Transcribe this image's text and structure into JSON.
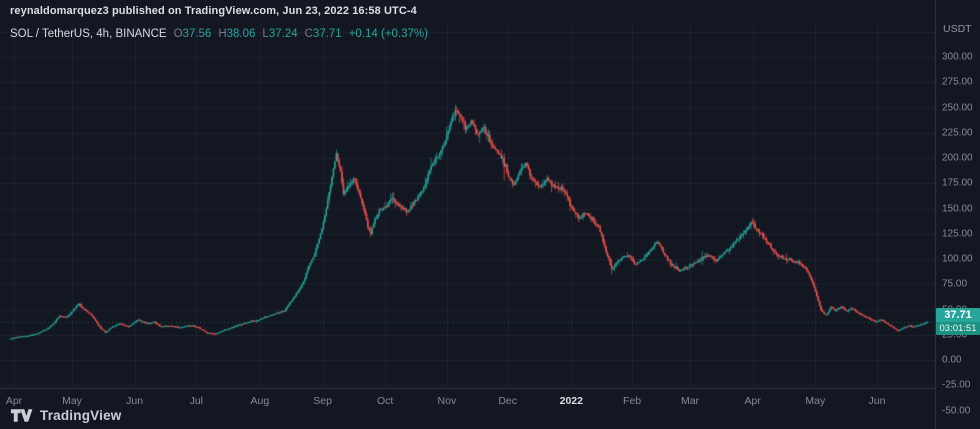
{
  "header": {
    "published_line": "reynaldomarquez3 published on TradingView.com, Jun 23, 2022 16:58 UTC-4"
  },
  "legend": {
    "symbol": "SOL / TetherUS, 4h, BINANCE",
    "ohlc": [
      {
        "label": "O",
        "value": "37.56"
      },
      {
        "label": "H",
        "value": "38.06"
      },
      {
        "label": "L",
        "value": "37.24"
      },
      {
        "label": "C",
        "value": "37.71"
      }
    ],
    "change": "+0.14 (+0.37%)"
  },
  "price_axis": {
    "unit": "USDT",
    "tick_labels": [
      "300.00",
      "275.00",
      "250.00",
      "225.00",
      "200.00",
      "175.00",
      "150.00",
      "125.00",
      "100.00",
      "75.00",
      "50.00",
      "25.00",
      "0.00",
      "-25.00",
      "-50.00"
    ],
    "tick_values": [
      300,
      275,
      250,
      225,
      200,
      175,
      150,
      125,
      100,
      75,
      50,
      25,
      0,
      -25,
      -50
    ],
    "last_price": "37.71",
    "countdown": "03:01:51"
  },
  "time_axis": {
    "labels": [
      {
        "text": "Apr",
        "t": 0.015,
        "highlight": false
      },
      {
        "text": "May",
        "t": 0.077,
        "highlight": false
      },
      {
        "text": "Jun",
        "t": 0.144,
        "highlight": false
      },
      {
        "text": "Jul",
        "t": 0.21,
        "highlight": false
      },
      {
        "text": "Aug",
        "t": 0.278,
        "highlight": false
      },
      {
        "text": "Sep",
        "t": 0.345,
        "highlight": false
      },
      {
        "text": "Oct",
        "t": 0.412,
        "highlight": false
      },
      {
        "text": "Nov",
        "t": 0.478,
        "highlight": false
      },
      {
        "text": "Dec",
        "t": 0.543,
        "highlight": false
      },
      {
        "text": "2022",
        "t": 0.611,
        "highlight": true
      },
      {
        "text": "Feb",
        "t": 0.676,
        "highlight": false
      },
      {
        "text": "Mar",
        "t": 0.738,
        "highlight": false
      },
      {
        "text": "Apr",
        "t": 0.805,
        "highlight": false
      },
      {
        "text": "May",
        "t": 0.872,
        "highlight": false
      },
      {
        "text": "Jun",
        "t": 0.938,
        "highlight": false
      }
    ]
  },
  "footer": {
    "brand": "TradingView"
  },
  "colors": {
    "background": "#131722",
    "up": "#26a69a",
    "down": "#ef5350",
    "grid": "rgba(130,140,160,0.10)",
    "separator": "#2a2e39",
    "axis_text": "#868b98",
    "text": "#d1d4dc",
    "badge_bg": "#26a69a",
    "badge_text": "#ffffff"
  },
  "chart_data": {
    "type": "candlestick",
    "title": "SOL / TetherUS, 4h, BINANCE",
    "symbol": "SOL/USDT",
    "exchange": "BINANCE",
    "interval": "4h",
    "x_range": [
      "Apr 2021",
      "Jun 2022"
    ],
    "y_range": [
      -50,
      328
    ],
    "y_ticks": [
      -50,
      -25,
      0,
      25,
      50,
      75,
      100,
      125,
      150,
      175,
      200,
      225,
      250,
      275,
      300
    ],
    "grid": true,
    "legend_position": "top-left",
    "last_bar": {
      "open": 37.56,
      "high": 38.06,
      "low": 37.24,
      "close": 37.71,
      "change": 0.14,
      "change_pct": 0.37
    },
    "price_path": {
      "comment": "Approximate SOL/USDT price trajectory sampled across the visible window; t = 0..1 of plot width, price in USDT",
      "t": [
        0.0,
        0.01,
        0.02,
        0.03,
        0.04,
        0.048,
        0.055,
        0.062,
        0.068,
        0.075,
        0.082,
        0.09,
        0.098,
        0.105,
        0.112,
        0.12,
        0.13,
        0.14,
        0.15,
        0.158,
        0.165,
        0.175,
        0.185,
        0.195,
        0.205,
        0.215,
        0.225,
        0.235,
        0.245,
        0.255,
        0.262,
        0.27,
        0.28,
        0.29,
        0.3,
        0.31,
        0.318,
        0.326,
        0.334,
        0.342,
        0.35,
        0.356,
        0.36,
        0.364,
        0.37,
        0.376,
        0.382,
        0.388,
        0.393,
        0.398,
        0.403,
        0.41,
        0.418,
        0.426,
        0.434,
        0.442,
        0.45,
        0.458,
        0.465,
        0.472,
        0.48,
        0.487,
        0.492,
        0.497,
        0.503,
        0.51,
        0.517,
        0.524,
        0.53,
        0.537,
        0.543,
        0.549,
        0.556,
        0.563,
        0.57,
        0.578,
        0.585,
        0.592,
        0.6,
        0.605,
        0.612,
        0.62,
        0.628,
        0.636,
        0.644,
        0.65,
        0.656,
        0.662,
        0.668,
        0.675,
        0.682,
        0.69,
        0.698,
        0.706,
        0.714,
        0.722,
        0.73,
        0.738,
        0.746,
        0.754,
        0.762,
        0.77,
        0.778,
        0.786,
        0.794,
        0.8,
        0.808,
        0.814,
        0.82,
        0.828,
        0.836,
        0.844,
        0.852,
        0.86,
        0.868,
        0.874,
        0.88,
        0.885,
        0.89,
        0.895,
        0.9,
        0.906,
        0.912,
        0.918,
        0.924,
        0.93,
        0.937,
        0.944,
        0.95,
        0.956,
        0.962,
        0.968,
        0.974,
        0.98,
        0.986,
        0.992,
        1.0
      ],
      "price": [
        21,
        23,
        24,
        26,
        30,
        36,
        44,
        42,
        48,
        55,
        50,
        44,
        33,
        27,
        33,
        36,
        33,
        40,
        36,
        38,
        33,
        34,
        32,
        34,
        33,
        27,
        26,
        30,
        33,
        36,
        38,
        39,
        43,
        46,
        49,
        62,
        73,
        92,
        108,
        135,
        172,
        205,
        192,
        165,
        172,
        180,
        163,
        143,
        124,
        138,
        148,
        152,
        160,
        152,
        147,
        158,
        168,
        188,
        200,
        210,
        232,
        250,
        240,
        228,
        237,
        222,
        230,
        214,
        208,
        202,
        184,
        172,
        186,
        196,
        178,
        170,
        180,
        172,
        170,
        168,
        152,
        140,
        146,
        138,
        128,
        108,
        90,
        96,
        102,
        104,
        94,
        100,
        108,
        118,
        104,
        94,
        88,
        92,
        96,
        100,
        104,
        98,
        106,
        112,
        120,
        126,
        136,
        130,
        124,
        114,
        104,
        101,
        99,
        96,
        90,
        80,
        62,
        48,
        44,
        53,
        49,
        53,
        48,
        51,
        47,
        44,
        41,
        38,
        40,
        36,
        33,
        29,
        32,
        34,
        33,
        35,
        37.71
      ]
    }
  }
}
